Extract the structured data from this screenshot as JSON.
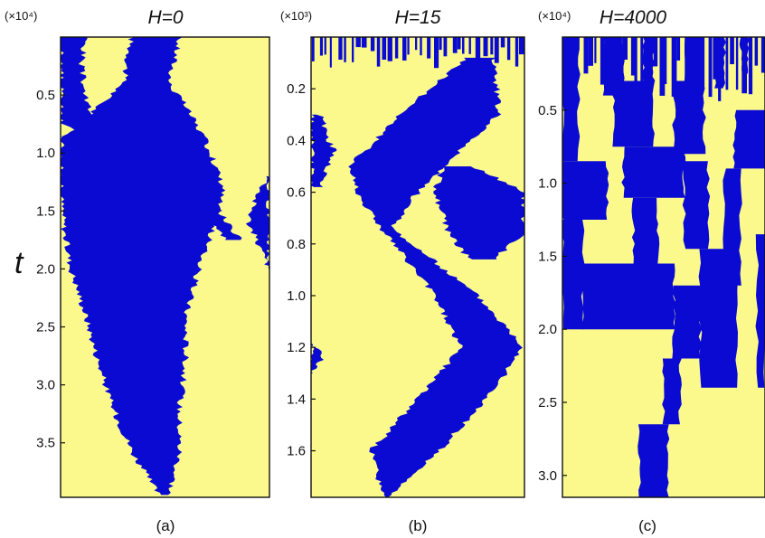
{
  "figure": {
    "y_axis_label": "t",
    "colors": {
      "state_a": "#fbf98c",
      "state_b": "#0a0ad2",
      "frame": "#111111"
    }
  },
  "chart_data": [
    {
      "type": "heatmap",
      "panel_label": "(a)",
      "title": "H=0",
      "scale_label": "(×10⁴)",
      "ylabel": "t",
      "y_axis_direction": "down",
      "ylim": [
        0,
        3.97
      ],
      "yticks": [
        0.5,
        1.0,
        1.5,
        2.0,
        2.5,
        3.0,
        3.5
      ],
      "ytick_labels": [
        "0.5",
        "1.0",
        "1.5",
        "2.0",
        "2.5",
        "3.0",
        "3.5"
      ],
      "xlim": [
        0,
        1
      ],
      "background": "state_a",
      "blue_regions": [
        {
          "t": [
            0.0,
            0.4,
            0.6,
            0.85,
            1.0,
            1.3,
            1.7,
            2.0,
            2.4,
            2.8,
            3.2,
            3.6,
            3.95
          ],
          "left": [
            0.34,
            0.3,
            0.18,
            0.02,
            0.0,
            0.0,
            0.02,
            0.05,
            0.12,
            0.18,
            0.25,
            0.35,
            0.47
          ],
          "right": [
            0.57,
            0.52,
            0.6,
            0.68,
            0.72,
            0.78,
            0.72,
            0.66,
            0.6,
            0.6,
            0.57,
            0.57,
            0.52
          ]
        },
        {
          "t": [
            0.0,
            0.25,
            0.55,
            0.75,
            0.95,
            1.1,
            1.3,
            1.6,
            1.75
          ],
          "left": [
            0.0,
            0.0,
            0.0,
            0.0,
            0.3,
            0.45,
            0.6,
            0.72,
            0.8
          ],
          "right": [
            0.12,
            0.1,
            0.12,
            0.18,
            0.4,
            0.55,
            0.68,
            0.8,
            0.86
          ]
        },
        {
          "t": [
            1.2,
            1.4,
            1.6,
            1.8,
            2.0
          ],
          "left": [
            1.0,
            0.93,
            0.9,
            0.95,
            1.0
          ],
          "right": [
            1.0,
            1.0,
            1.0,
            1.0,
            1.0
          ]
        }
      ]
    },
    {
      "type": "heatmap",
      "panel_label": "(b)",
      "title": "H=15",
      "scale_label": "(×10³)",
      "ylabel": "t",
      "y_axis_direction": "down",
      "ylim": [
        0,
        1.78
      ],
      "yticks": [
        0.2,
        0.4,
        0.6,
        0.8,
        1.0,
        1.2,
        1.4,
        1.6
      ],
      "ytick_labels": [
        "0.2",
        "0.4",
        "0.6",
        "0.8",
        "1.0",
        "1.2",
        "1.4",
        "1.6"
      ],
      "xlim": [
        0,
        1
      ],
      "background": "state_a",
      "blue_regions": [
        {
          "t": [
            0.08,
            0.3,
            0.5,
            0.62,
            0.74,
            1.0,
            1.2,
            1.4,
            1.6,
            1.78
          ],
          "left": [
            0.73,
            0.42,
            0.18,
            0.23,
            0.33,
            0.58,
            0.7,
            0.5,
            0.28,
            0.34
          ],
          "right": [
            0.86,
            0.88,
            0.62,
            0.48,
            0.38,
            0.78,
            1.0,
            0.82,
            0.6,
            0.36
          ]
        },
        {
          "t": [
            0.5,
            0.6,
            0.75,
            0.86
          ],
          "left": [
            0.62,
            0.58,
            0.64,
            0.74
          ],
          "right": [
            0.76,
            1.0,
            1.0,
            0.86
          ]
        },
        {
          "t": [
            0.3,
            0.45,
            0.58
          ],
          "left": [
            0.0,
            0.0,
            0.0
          ],
          "right": [
            0.04,
            0.11,
            0.04
          ]
        },
        {
          "t": [
            1.18,
            1.24,
            1.3
          ],
          "left": [
            0.0,
            0.0,
            0.0
          ],
          "right": [
            0.0,
            0.06,
            0.0
          ]
        }
      ],
      "early_noise_rows": [
        0.0,
        0.12
      ]
    },
    {
      "type": "heatmap",
      "panel_label": "(c)",
      "title": "H=4000",
      "scale_label": "(×10⁴)",
      "ylabel": "t",
      "y_axis_direction": "down",
      "ylim": [
        0,
        3.15
      ],
      "yticks": [
        0.5,
        1.0,
        1.5,
        2.0,
        2.5,
        3.0
      ],
      "ytick_labels": [
        "0.5",
        "1.0",
        "1.5",
        "2.0",
        "2.5",
        "3.0"
      ],
      "xlim": [
        0,
        1
      ],
      "background": "state_a",
      "blue_blocks": [
        {
          "t": [
            0.0,
            0.85
          ],
          "x": [
            0.0,
            0.08
          ]
        },
        {
          "t": [
            0.0,
            0.4
          ],
          "x": [
            0.2,
            0.3
          ]
        },
        {
          "t": [
            0.0,
            0.3
          ],
          "x": [
            0.4,
            0.45
          ]
        },
        {
          "t": [
            0.0,
            0.55
          ],
          "x": [
            0.6,
            0.68
          ]
        },
        {
          "t": [
            0.0,
            0.35
          ],
          "x": [
            0.75,
            0.8
          ]
        },
        {
          "t": [
            0.0,
            0.25
          ],
          "x": [
            0.88,
            0.92
          ]
        },
        {
          "t": [
            0.3,
            0.75
          ],
          "x": [
            0.25,
            0.45
          ]
        },
        {
          "t": [
            0.3,
            0.8
          ],
          "x": [
            0.55,
            0.7
          ]
        },
        {
          "t": [
            0.5,
            0.9
          ],
          "x": [
            0.85,
            1.0
          ]
        },
        {
          "t": [
            0.75,
            1.1
          ],
          "x": [
            0.3,
            0.6
          ]
        },
        {
          "t": [
            0.85,
            1.25
          ],
          "x": [
            0.0,
            0.22
          ]
        },
        {
          "t": [
            0.85,
            1.45
          ],
          "x": [
            0.6,
            0.72
          ]
        },
        {
          "t": [
            0.9,
            1.7
          ],
          "x": [
            0.8,
            0.88
          ]
        },
        {
          "t": [
            1.1,
            1.55
          ],
          "x": [
            0.35,
            0.47
          ]
        },
        {
          "t": [
            1.25,
            2.0
          ],
          "x": [
            0.0,
            0.1
          ]
        },
        {
          "t": [
            1.35,
            2.4
          ],
          "x": [
            0.96,
            1.0
          ]
        },
        {
          "t": [
            1.45,
            2.4
          ],
          "x": [
            0.68,
            0.86
          ]
        },
        {
          "t": [
            1.55,
            2.0
          ],
          "x": [
            0.1,
            0.55
          ]
        },
        {
          "t": [
            1.7,
            2.2
          ],
          "x": [
            0.55,
            0.68
          ]
        },
        {
          "t": [
            2.2,
            2.65
          ],
          "x": [
            0.5,
            0.58
          ]
        },
        {
          "t": [
            2.65,
            3.15
          ],
          "x": [
            0.38,
            0.52
          ]
        }
      ],
      "early_noise_rows": [
        0.0,
        0.45
      ]
    }
  ]
}
